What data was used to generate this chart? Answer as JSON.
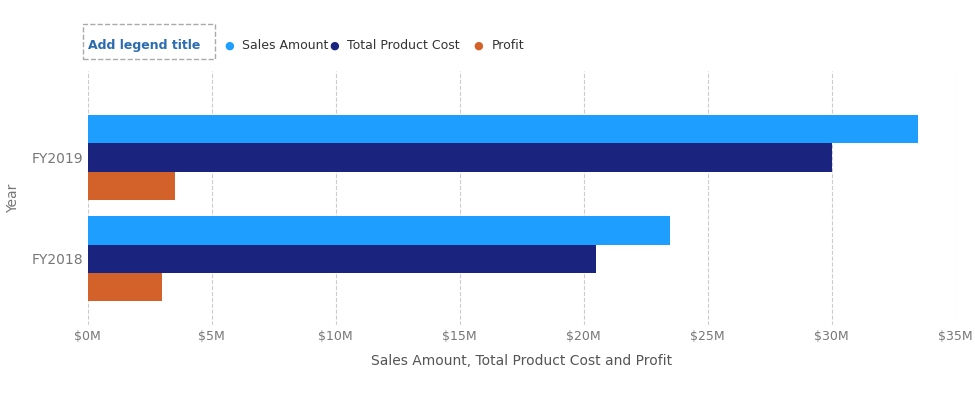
{
  "categories": [
    "FY2019",
    "FY2018"
  ],
  "sales_amount": [
    33500000,
    23500000
  ],
  "total_product_cost": [
    30000000,
    20500000
  ],
  "profit": [
    3500000,
    3000000
  ],
  "colors": {
    "sales_amount": "#1E9FFF",
    "total_product_cost": "#1A237E",
    "profit": "#D2622A"
  },
  "xlabel": "Sales Amount, Total Product Cost and Profit",
  "ylabel": "Year",
  "xlim": [
    0,
    35000000
  ],
  "xticks": [
    0,
    5000000,
    10000000,
    15000000,
    20000000,
    25000000,
    30000000,
    35000000
  ],
  "xtick_labels": [
    "$0M",
    "$5M",
    "$10M",
    "$15M",
    "$20M",
    "$25M",
    "$30M",
    "$35M"
  ],
  "legend_labels": [
    "Sales Amount",
    "Total Product Cost",
    "Profit"
  ],
  "legend_title": "Add legend title",
  "background_color": "#ffffff",
  "bar_height": 0.28
}
